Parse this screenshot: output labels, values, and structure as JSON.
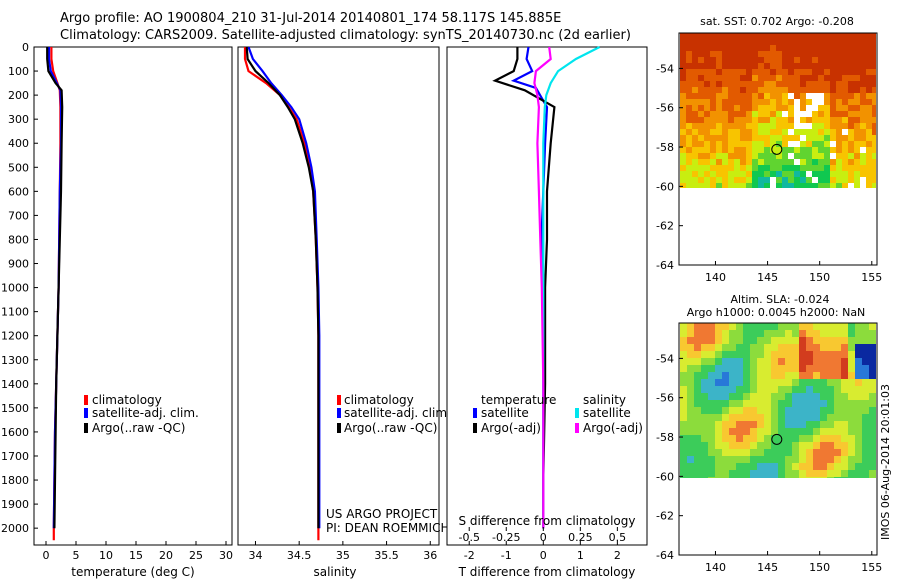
{
  "header": {
    "line1": "Argo profile: AO 1900804_210 31-Jul-2014 20140801_174 58.117S 145.885E",
    "line2": "Climatology: CARS2009. Satellite-adjusted climatology: synTS_20140730.nc (2d earlier)"
  },
  "colors": {
    "climatology": "#ff0000",
    "satellite_adj": "#0000ff",
    "argo": "#000000",
    "salinity_satellite": "#00e5ee",
    "salinity_argo": "#ff00ff"
  },
  "footer": {
    "project": "US ARGO PROJECT",
    "pi": "PI: DEAN ROEMMICH",
    "stamp": "IMOS 06-Aug-2014 20:01:03"
  },
  "chart_data": [
    {
      "id": "temperature",
      "type": "line",
      "xlabel": "temperature (deg C)",
      "ylabel": "",
      "xlim": [
        -2,
        31
      ],
      "ylim": [
        2070,
        0
      ],
      "xticks": [
        0,
        5,
        10,
        15,
        20,
        25,
        30
      ],
      "yticks": [
        0,
        100,
        200,
        300,
        400,
        500,
        600,
        700,
        800,
        900,
        1000,
        1100,
        1200,
        1300,
        1400,
        1500,
        1600,
        1700,
        1800,
        1900,
        2000
      ],
      "legend": [
        "climatology",
        "satellite-adj. clim.",
        "Argo(..raw -QC)"
      ],
      "legend_position": "lower-right",
      "series": [
        {
          "name": "climatology",
          "color": "#ff0000",
          "x": [
            0.9,
            0.9,
            1.2,
            1.9,
            2.3,
            2.4,
            2.4,
            2.3,
            2.2,
            2.1,
            1.9,
            1.7,
            1.5,
            1.4,
            1.3,
            1.3
          ],
          "y": [
            0,
            50,
            100,
            150,
            180,
            250,
            400,
            600,
            800,
            1000,
            1200,
            1400,
            1600,
            1800,
            2000,
            2050
          ]
        },
        {
          "name": "satellite-adj. clim.",
          "color": "#0000ff",
          "x": [
            0.5,
            0.5,
            0.8,
            1.8,
            2.4,
            2.5,
            2.5,
            2.3,
            2.2,
            2.1,
            1.9,
            1.7,
            1.5,
            1.4,
            1.3
          ],
          "y": [
            0,
            50,
            100,
            150,
            180,
            250,
            400,
            600,
            800,
            1000,
            1200,
            1400,
            1600,
            1800,
            2000
          ]
        },
        {
          "name": "Argo(..raw -QC)",
          "color": "#000000",
          "x": [
            0.2,
            0.2,
            0.4,
            1.6,
            2.6,
            2.7,
            2.6,
            2.5,
            2.3,
            2.1,
            1.9,
            1.7,
            1.6,
            1.5,
            1.4
          ],
          "y": [
            0,
            50,
            100,
            150,
            180,
            250,
            400,
            600,
            800,
            1000,
            1200,
            1400,
            1600,
            1800,
            2000
          ]
        }
      ]
    },
    {
      "id": "salinity",
      "type": "line",
      "xlabel": "salinity",
      "ylabel": "",
      "xlim": [
        33.8,
        36.1
      ],
      "ylim": [
        2070,
        0
      ],
      "xticks": [
        34,
        34.5,
        35,
        35.5,
        36
      ],
      "legend": [
        "climatology",
        "satellite-adj. clim.",
        "Argo(..raw -QC)"
      ],
      "legend_position": "lower-right",
      "series": [
        {
          "name": "climatology",
          "color": "#ff0000",
          "x": [
            33.88,
            33.88,
            33.92,
            34.12,
            34.28,
            34.38,
            34.47,
            34.56,
            34.62,
            34.66,
            34.69,
            34.71,
            34.72,
            34.72,
            34.72,
            34.72,
            34.72
          ],
          "y": [
            0,
            50,
            100,
            150,
            200,
            250,
            300,
            400,
            500,
            600,
            800,
            1000,
            1200,
            1400,
            1600,
            1800,
            2050
          ]
        },
        {
          "name": "satellite-adj. clim.",
          "color": "#0000ff",
          "x": [
            33.92,
            33.97,
            34.08,
            34.18,
            34.3,
            34.41,
            34.5,
            34.58,
            34.64,
            34.68,
            34.7,
            34.72,
            34.73,
            34.73,
            34.73,
            34.73,
            34.73
          ],
          "y": [
            0,
            50,
            100,
            150,
            200,
            250,
            300,
            400,
            500,
            600,
            800,
            1000,
            1200,
            1400,
            1600,
            1800,
            2000
          ]
        },
        {
          "name": "Argo(..raw -QC)",
          "color": "#000000",
          "x": [
            33.9,
            33.91,
            34.0,
            34.15,
            34.28,
            34.37,
            34.45,
            34.54,
            34.61,
            34.66,
            34.69,
            34.71,
            34.72,
            34.72,
            34.72,
            34.72,
            34.72
          ],
          "y": [
            0,
            50,
            100,
            150,
            200,
            250,
            300,
            400,
            500,
            600,
            800,
            1000,
            1200,
            1400,
            1600,
            1800,
            2000
          ]
        }
      ]
    },
    {
      "id": "difference",
      "type": "line",
      "xlabel": "T difference from climatology",
      "x2label": "S difference from climatology",
      "ylabel": "",
      "xlim": [
        -2.6,
        2.8
      ],
      "x2lim": [
        -0.65,
        0.7
      ],
      "ylim": [
        2070,
        0
      ],
      "xticks": [
        -2,
        -1,
        0,
        1,
        2
      ],
      "x2ticks": [
        -0.5,
        -0.25,
        0,
        0.25,
        0.5
      ],
      "x2ticklabels": [
        "-0.5",
        "-0.25",
        "0",
        "0.25",
        "0.5"
      ],
      "legend_groups": [
        "temperature",
        "salinity"
      ],
      "legend": [
        "satellite",
        "Argo(-adj)",
        "satellite",
        "Argo(-adj)"
      ],
      "legend_position": "lower-center",
      "series": [
        {
          "name": "satellite",
          "group": "temperature",
          "color": "#0000ff",
          "axis": "x",
          "x": [
            -0.4,
            -0.45,
            -0.3,
            -0.8,
            -0.2,
            0.1,
            0.05,
            0.0,
            -0.05,
            0.0,
            0.0,
            0.0,
            0.0
          ],
          "y": [
            0,
            50,
            100,
            140,
            170,
            250,
            400,
            600,
            800,
            1000,
            1400,
            1800,
            2000
          ]
        },
        {
          "name": "Argo(-adj)",
          "group": "temperature",
          "color": "#000000",
          "axis": "x",
          "x": [
            -0.7,
            -0.7,
            -0.8,
            -1.3,
            -0.5,
            0.3,
            0.2,
            0.1,
            0.1,
            0.05,
            0.05,
            0.0,
            0.0
          ],
          "y": [
            0,
            50,
            100,
            140,
            180,
            250,
            400,
            600,
            800,
            1000,
            1400,
            1800,
            2000
          ]
        },
        {
          "name": "satellite",
          "group": "salinity",
          "color": "#00e5ee",
          "axis": "x2",
          "x": [
            0.38,
            0.22,
            0.1,
            0.05,
            0.02,
            0.01,
            0.0,
            0.0,
            0.0,
            0.0,
            0.0,
            0.0,
            0.0
          ],
          "y": [
            0,
            50,
            100,
            150,
            200,
            250,
            400,
            600,
            800,
            1000,
            1400,
            1800,
            2000
          ]
        },
        {
          "name": "Argo(-adj)",
          "group": "salinity",
          "color": "#ff00ff",
          "axis": "x2",
          "x": [
            0.04,
            0.05,
            -0.05,
            -0.06,
            -0.04,
            -0.03,
            -0.04,
            -0.03,
            -0.02,
            -0.01,
            0.0,
            0.0,
            0.0
          ],
          "y": [
            0,
            50,
            100,
            150,
            200,
            250,
            400,
            600,
            800,
            1000,
            1400,
            1800,
            2000
          ]
        }
      ]
    },
    {
      "id": "sst_map",
      "type": "heatmap",
      "title": "sat. SST: 0.702 Argo: -0.208",
      "xlim": [
        136.5,
        155.5
      ],
      "ylim": [
        -64,
        -52.2
      ],
      "xticks": [
        140,
        145,
        150,
        155
      ],
      "yticks": [
        -54,
        -56,
        -58,
        -60,
        -62,
        -64
      ],
      "data_extent_lat": [
        -60,
        -52.2
      ],
      "colormap": "jet",
      "marker": {
        "lon": 145.885,
        "lat": -58.117
      }
    },
    {
      "id": "sla_map",
      "type": "heatmap",
      "title": "Altim. SLA: -0.024",
      "subtitle": "Argo h1000: 0.0045 h2000: NaN",
      "xlim": [
        136.5,
        155.5
      ],
      "ylim": [
        -64,
        -52.2
      ],
      "xticks": [
        140,
        145,
        150,
        155
      ],
      "yticks": [
        -54,
        -56,
        -58,
        -60,
        -62,
        -64
      ],
      "data_extent_lat": [
        -60,
        -52.2
      ],
      "colormap": "jet",
      "marker": {
        "lon": 145.885,
        "lat": -58.117
      }
    }
  ]
}
